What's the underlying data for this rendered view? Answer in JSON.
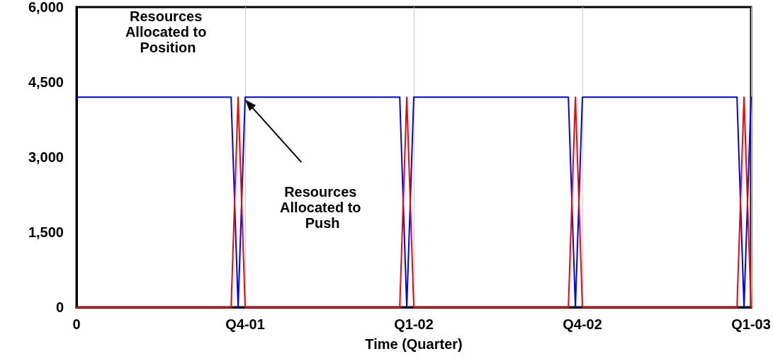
{
  "chart_data": {
    "type": "line",
    "xlabel": "Time (Quarter)",
    "categories": [
      "0",
      null,
      null,
      null,
      null,
      null,
      null,
      null,
      null,
      null,
      null,
      null,
      null,
      null,
      null,
      null,
      null,
      null,
      null,
      null,
      null,
      null,
      null,
      null,
      "Q4-01",
      null,
      null,
      null,
      null,
      null,
      null,
      null,
      null,
      null,
      null,
      null,
      null,
      null,
      null,
      null,
      null,
      null,
      null,
      null,
      null,
      null,
      null,
      null,
      "Q1-02",
      null,
      null,
      null,
      null,
      null,
      null,
      null,
      null,
      null,
      null,
      null,
      null,
      null,
      null,
      null,
      null,
      null,
      null,
      null,
      null,
      null,
      null,
      null,
      "Q4-02",
      null,
      null,
      null,
      null,
      null,
      null,
      null,
      null,
      null,
      null,
      null,
      null,
      null,
      null,
      null,
      null,
      null,
      null,
      null,
      null,
      null,
      null,
      null,
      "Q1-03"
    ],
    "ylim": [
      0,
      6000
    ],
    "yticks": [
      {
        "value": 0,
        "label": "0"
      },
      {
        "value": 1500,
        "label": "1,500"
      },
      {
        "value": 3000,
        "label": "3,000"
      },
      {
        "value": 4500,
        "label": "4,500"
      },
      {
        "value": 6000,
        "label": "6,000"
      }
    ],
    "grid": "x",
    "marker": "none",
    "line_style": "solid",
    "series": [
      {
        "name": "Resources Allocated to Position",
        "color": "#0000ff",
        "values": [
          4200,
          4200,
          4200,
          4200,
          4200,
          4200,
          4200,
          4200,
          4200,
          4200,
          4200,
          4200,
          4200,
          4200,
          4200,
          4200,
          4200,
          4200,
          4200,
          4200,
          4200,
          4200,
          4200,
          0,
          4200,
          4200,
          4200,
          4200,
          4200,
          4200,
          4200,
          4200,
          4200,
          4200,
          4200,
          4200,
          4200,
          4200,
          4200,
          4200,
          4200,
          4200,
          4200,
          4200,
          4200,
          4200,
          4200,
          0,
          4200,
          4200,
          4200,
          4200,
          4200,
          4200,
          4200,
          4200,
          4200,
          4200,
          4200,
          4200,
          4200,
          4200,
          4200,
          4200,
          4200,
          4200,
          4200,
          4200,
          4200,
          4200,
          4200,
          0,
          4200,
          4200,
          4200,
          4200,
          4200,
          4200,
          4200,
          4200,
          4200,
          4200,
          4200,
          4200,
          4200,
          4200,
          4200,
          4200,
          4200,
          4200,
          4200,
          4200,
          4200,
          4200,
          4200,
          0,
          4200
        ]
      },
      {
        "name": "Resources Allocated to Push",
        "color": "#ff0000",
        "values": [
          0,
          0,
          0,
          0,
          0,
          0,
          0,
          0,
          0,
          0,
          0,
          0,
          0,
          0,
          0,
          0,
          0,
          0,
          0,
          0,
          0,
          0,
          0,
          4200,
          0,
          0,
          0,
          0,
          0,
          0,
          0,
          0,
          0,
          0,
          0,
          0,
          0,
          0,
          0,
          0,
          0,
          0,
          0,
          0,
          0,
          0,
          0,
          4200,
          0,
          0,
          0,
          0,
          0,
          0,
          0,
          0,
          0,
          0,
          0,
          0,
          0,
          0,
          0,
          0,
          0,
          0,
          0,
          0,
          0,
          0,
          0,
          4200,
          0,
          0,
          0,
          0,
          0,
          0,
          0,
          0,
          0,
          0,
          0,
          0,
          0,
          0,
          0,
          0,
          0,
          0,
          0,
          0,
          0,
          0,
          0,
          4200,
          0
        ]
      }
    ]
  }
}
